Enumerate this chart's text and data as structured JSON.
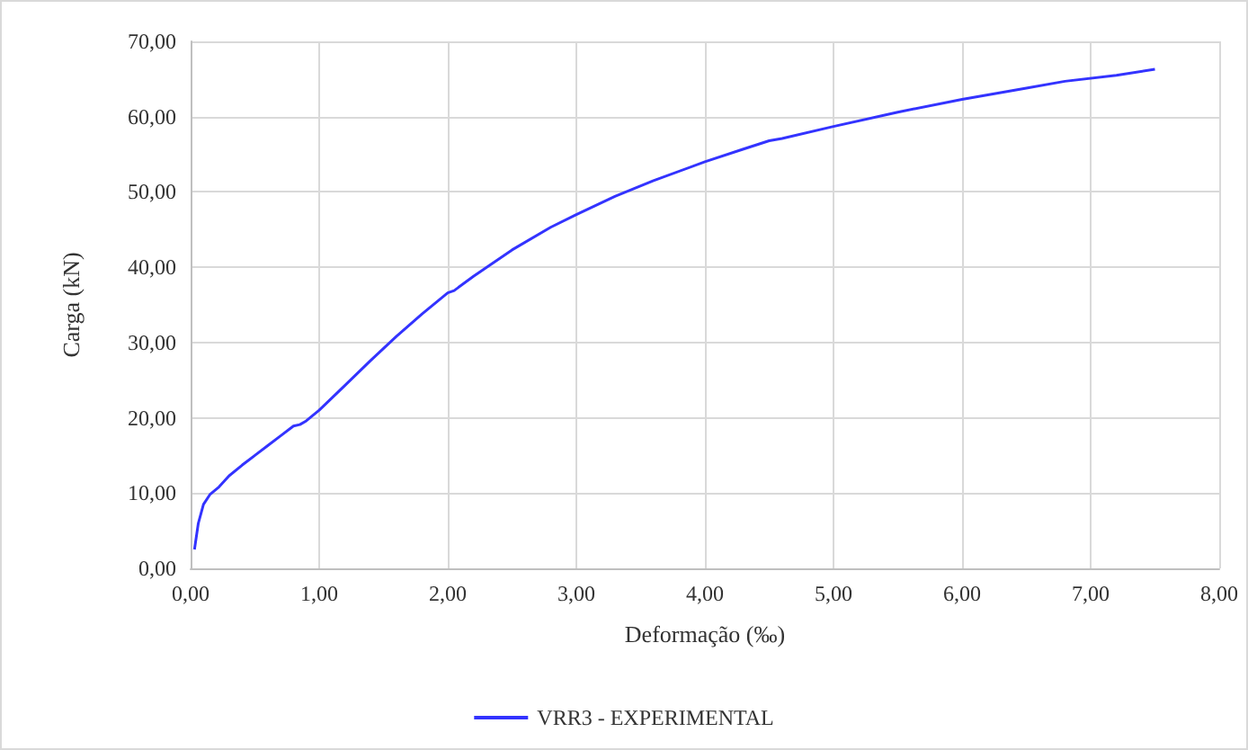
{
  "chart_data": {
    "type": "line",
    "xlabel": "Deformação (‰)",
    "ylabel": "Carga (kN)",
    "xlim": [
      0,
      8
    ],
    "xticks": [
      {
        "value": 0,
        "label": "0,00"
      },
      {
        "value": 1,
        "label": "1,00"
      },
      {
        "value": 2,
        "label": "2,00"
      },
      {
        "value": 3,
        "label": "3,00"
      },
      {
        "value": 4,
        "label": "4,00"
      },
      {
        "value": 5,
        "label": "5,00"
      },
      {
        "value": 6,
        "label": "6,00"
      },
      {
        "value": 7,
        "label": "7,00"
      },
      {
        "value": 8,
        "label": "8,00"
      }
    ],
    "ylim": [
      0,
      70
    ],
    "yticks": [
      {
        "value": 0,
        "label": "0,00"
      },
      {
        "value": 10,
        "label": "10,00"
      },
      {
        "value": 20,
        "label": "20,00"
      },
      {
        "value": 30,
        "label": "30,00"
      },
      {
        "value": 40,
        "label": "40,00"
      },
      {
        "value": 50,
        "label": "50,00"
      },
      {
        "value": 60,
        "label": "60,00"
      },
      {
        "value": 70,
        "label": "70,00"
      }
    ],
    "grid": true,
    "legend": "bottom",
    "marker": "none",
    "line_style": "solid",
    "series": [
      {
        "name": "VRR3 - EXPERIMENTAL",
        "color": "#3333ff",
        "x": [
          0.03,
          0.06,
          0.1,
          0.15,
          0.22,
          0.3,
          0.4,
          0.5,
          0.6,
          0.7,
          0.8,
          0.85,
          0.9,
          1.0,
          1.2,
          1.4,
          1.6,
          1.8,
          2.0,
          2.05,
          2.2,
          2.5,
          2.8,
          3.0,
          3.3,
          3.6,
          4.0,
          4.3,
          4.5,
          4.6,
          5.0,
          5.5,
          6.0,
          6.5,
          6.8,
          7.2,
          7.5
        ],
        "values": [
          2.5,
          6.0,
          8.5,
          9.8,
          10.8,
          12.3,
          13.7,
          15.0,
          16.3,
          17.6,
          18.9,
          19.1,
          19.6,
          21.0,
          24.3,
          27.6,
          30.8,
          33.8,
          36.6,
          36.9,
          38.8,
          42.3,
          45.3,
          47.0,
          49.4,
          51.5,
          54.0,
          55.7,
          56.8,
          57.1,
          58.7,
          60.6,
          62.3,
          63.8,
          64.7,
          65.5,
          66.3
        ]
      }
    ]
  }
}
